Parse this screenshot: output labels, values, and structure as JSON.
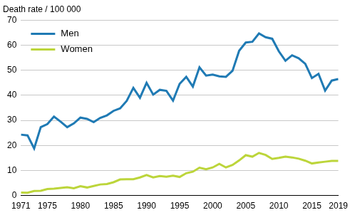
{
  "chart_data": {
    "type": "line",
    "title": "Death rate / 100 000",
    "x": [
      1971,
      1972,
      1973,
      1974,
      1975,
      1976,
      1977,
      1978,
      1979,
      1980,
      1981,
      1982,
      1983,
      1984,
      1985,
      1986,
      1987,
      1988,
      1989,
      1990,
      1991,
      1992,
      1993,
      1994,
      1995,
      1996,
      1997,
      1998,
      1999,
      2000,
      2001,
      2002,
      2003,
      2004,
      2005,
      2006,
      2007,
      2008,
      2009,
      2010,
      2011,
      2012,
      2013,
      2014,
      2015,
      2016,
      2017,
      2018,
      2019
    ],
    "series": [
      {
        "name": "Men",
        "color": "#1f7ab4",
        "values": [
          24.3,
          24.0,
          18.8,
          27.3,
          28.5,
          31.5,
          29.5,
          27.3,
          28.8,
          31.1,
          30.6,
          29.3,
          31.0,
          32.0,
          33.8,
          34.8,
          37.8,
          43.0,
          39.0,
          45.0,
          40.3,
          42.2,
          41.8,
          37.9,
          44.6,
          47.4,
          43.5,
          51.2,
          47.9,
          48.3,
          47.6,
          47.4,
          49.8,
          57.8,
          61.1,
          61.4,
          64.7,
          63.2,
          62.6,
          57.6,
          53.8,
          56.0,
          54.8,
          52.6,
          46.9,
          48.6,
          41.9,
          45.9,
          46.5
        ]
      },
      {
        "name": "Women",
        "color": "#bcd53a",
        "values": [
          1.2,
          1.1,
          1.8,
          1.9,
          2.6,
          2.7,
          3.0,
          3.3,
          2.9,
          3.7,
          3.2,
          3.8,
          4.4,
          4.6,
          5.3,
          6.4,
          6.5,
          6.5,
          7.2,
          8.2,
          7.2,
          7.8,
          7.5,
          7.9,
          7.4,
          8.9,
          9.5,
          11.1,
          10.5,
          11.2,
          12.6,
          11.2,
          12.2,
          14.0,
          16.1,
          15.5,
          17.0,
          16.2,
          14.6,
          15.0,
          15.5,
          15.2,
          14.7,
          13.9,
          12.8,
          13.2,
          13.5,
          13.8,
          13.8
        ]
      }
    ],
    "xlim": [
      1971,
      2019
    ],
    "xticks": [
      1971,
      1975,
      1980,
      1985,
      1990,
      1995,
      2000,
      2005,
      2010,
      2015,
      2019
    ],
    "ylim": [
      0,
      70
    ],
    "yticks": [
      0,
      10,
      20,
      30,
      40,
      50,
      60,
      70
    ],
    "grid": true,
    "legend": "top-left"
  }
}
